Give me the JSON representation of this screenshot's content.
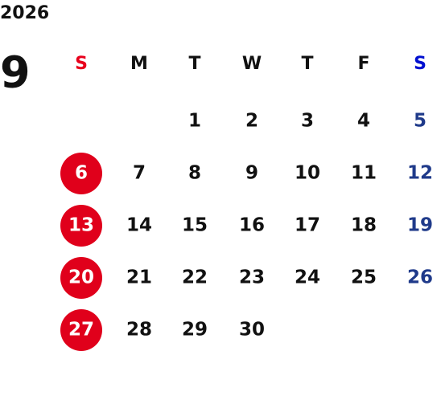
{
  "year": "2026",
  "month": "9",
  "weekdays": [
    "S",
    "M",
    "T",
    "W",
    "T",
    "F",
    "S"
  ],
  "weeks": [
    [
      null,
      null,
      1,
      2,
      3,
      4,
      5
    ],
    [
      6,
      7,
      8,
      9,
      10,
      11,
      12
    ],
    [
      13,
      14,
      15,
      16,
      17,
      18,
      19
    ],
    [
      20,
      21,
      22,
      23,
      24,
      25,
      26
    ],
    [
      27,
      28,
      29,
      30,
      null,
      null,
      null
    ]
  ]
}
